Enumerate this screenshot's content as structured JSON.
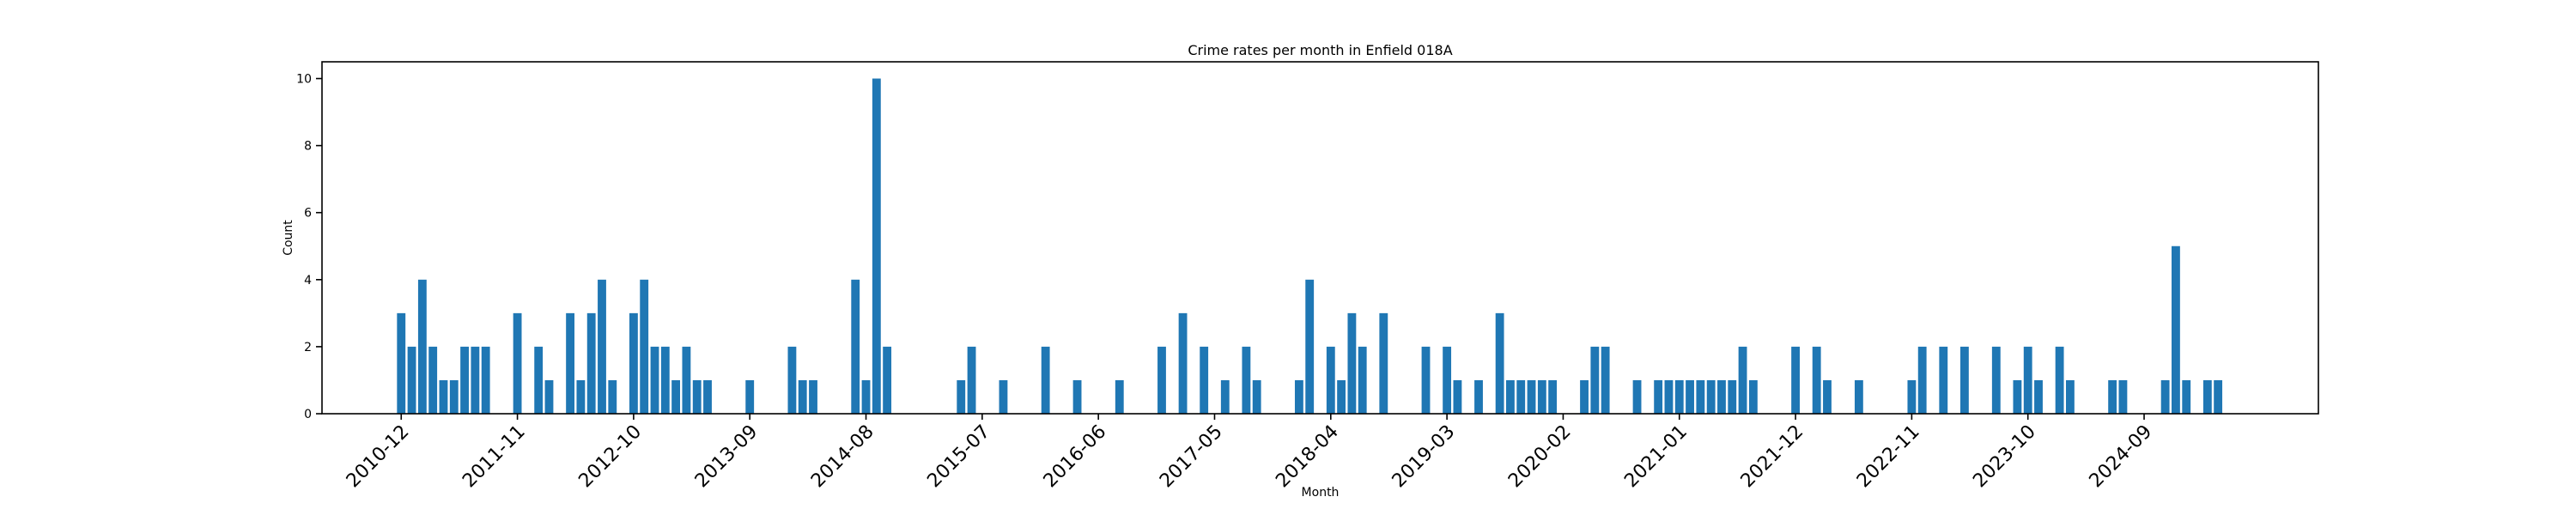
{
  "chart_data": {
    "type": "bar",
    "title": "Crime rates per month in Enfield 018A",
    "xlabel": "Month",
    "ylabel": "Count",
    "ylim": [
      0,
      10.5
    ],
    "y_ticks": [
      0,
      2,
      4,
      6,
      8,
      10
    ],
    "bar_color": "#1f77b4",
    "x_tick_labels": [
      "2010-12",
      "2011-11",
      "2012-10",
      "2013-09",
      "2014-08",
      "2015-07",
      "2016-06",
      "2017-05",
      "2018-04",
      "2019-03",
      "2020-02",
      "2021-01",
      "2021-12",
      "2022-11",
      "2023-10",
      "2024-09"
    ],
    "categories": [
      "2010-12",
      "2011-01",
      "2011-02",
      "2011-03",
      "2011-04",
      "2011-05",
      "2011-06",
      "2011-07",
      "2011-08",
      "2011-11",
      "2012-01",
      "2012-02",
      "2012-04",
      "2012-05",
      "2012-06",
      "2012-07",
      "2012-08",
      "2012-10",
      "2012-11",
      "2012-12",
      "2013-01",
      "2013-02",
      "2013-03",
      "2013-04",
      "2013-05",
      "2013-09",
      "2014-01",
      "2014-02",
      "2014-03",
      "2014-07",
      "2014-08",
      "2014-09",
      "2014-10",
      "2015-05",
      "2015-06",
      "2015-09",
      "2016-01",
      "2016-04",
      "2016-08",
      "2016-12",
      "2017-02",
      "2017-04",
      "2017-06",
      "2017-08",
      "2017-09",
      "2018-01",
      "2018-02",
      "2018-04",
      "2018-05",
      "2018-06",
      "2018-07",
      "2018-09",
      "2019-01",
      "2019-03",
      "2019-04",
      "2019-06",
      "2019-08",
      "2019-09",
      "2019-10",
      "2019-11",
      "2019-12",
      "2020-01",
      "2020-04",
      "2020-05",
      "2020-06",
      "2020-09",
      "2020-11",
      "2020-12",
      "2021-01",
      "2021-02",
      "2021-03",
      "2021-04",
      "2021-05",
      "2021-06",
      "2021-07",
      "2021-08",
      "2021-12",
      "2022-02",
      "2022-03",
      "2022-06",
      "2022-11",
      "2022-12",
      "2023-02",
      "2023-04",
      "2023-07",
      "2023-09",
      "2023-10",
      "2023-11",
      "2024-01",
      "2024-02",
      "2024-06",
      "2024-07",
      "2024-11",
      "2024-12",
      "2025-01",
      "2025-03",
      "2025-04"
    ],
    "values": [
      3,
      2,
      4,
      2,
      1,
      1,
      2,
      2,
      2,
      3,
      2,
      1,
      3,
      1,
      3,
      4,
      1,
      3,
      4,
      2,
      2,
      1,
      2,
      1,
      1,
      1,
      2,
      1,
      1,
      4,
      1,
      10,
      2,
      1,
      2,
      1,
      2,
      1,
      1,
      2,
      3,
      2,
      1,
      2,
      1,
      1,
      4,
      2,
      1,
      3,
      2,
      3,
      2,
      2,
      1,
      1,
      3,
      1,
      1,
      1,
      1,
      1,
      1,
      2,
      2,
      1,
      1,
      1,
      1,
      1,
      1,
      1,
      1,
      1,
      2,
      1,
      2,
      2,
      1,
      1,
      1,
      2,
      2,
      2,
      2,
      1,
      2,
      1,
      2,
      1,
      1,
      1,
      1,
      5,
      1,
      1,
      1
    ]
  }
}
